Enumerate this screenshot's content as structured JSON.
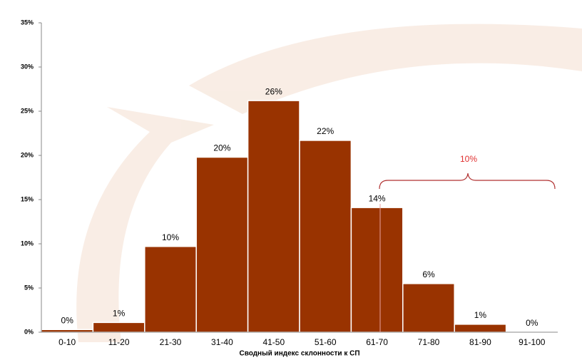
{
  "chart_data": {
    "type": "bar",
    "x_label": "Сводный индекс склонности к СП",
    "categories": [
      "0-10",
      "11-20",
      "21-30",
      "31-40",
      "41-50",
      "51-60",
      "61-70",
      "71-80",
      "81-90",
      "91-100"
    ],
    "values": [
      0.3,
      1.1,
      9.7,
      19.8,
      26.2,
      21.7,
      14.1,
      5.5,
      0.9,
      0
    ],
    "value_labels": [
      "0%",
      "1%",
      "10%",
      "20%",
      "26%",
      "22%",
      "14%",
      "6%",
      "1%",
      "0%"
    ],
    "color": "#993300",
    "ylim": [
      0,
      35
    ],
    "yticks": [
      {
        "value": 0,
        "label": "0%"
      },
      {
        "value": 5,
        "label": "5%"
      },
      {
        "value": 10,
        "label": "10%"
      },
      {
        "value": 15,
        "label": "15%"
      },
      {
        "value": 20,
        "label": "20%"
      },
      {
        "value": 25,
        "label": "25%"
      },
      {
        "value": 30,
        "label": "30%"
      },
      {
        "value": 35,
        "label": "35%"
      }
    ],
    "annotation": "10%",
    "annotation_color": "#e03030"
  }
}
